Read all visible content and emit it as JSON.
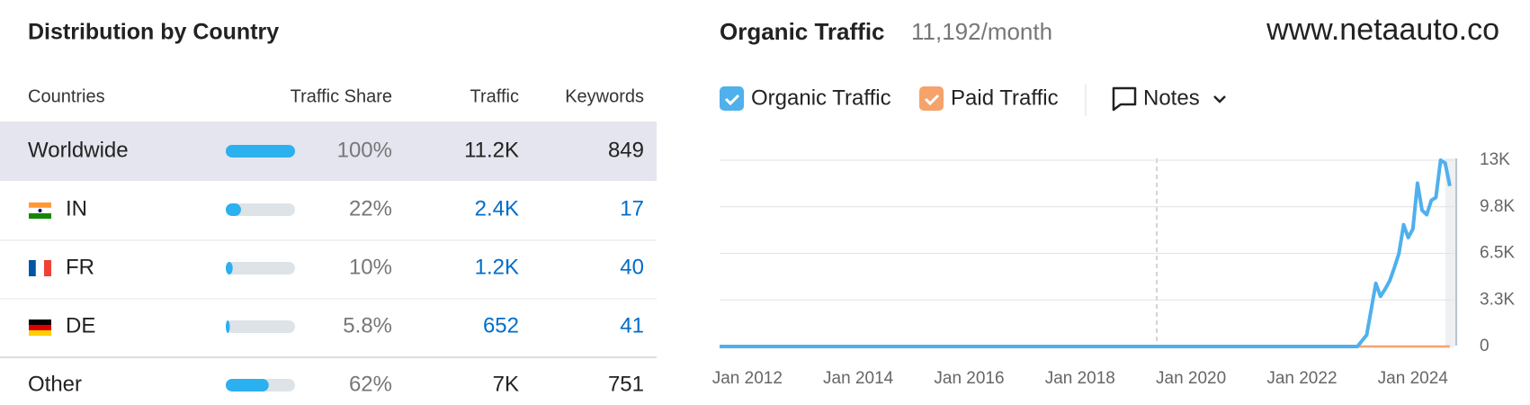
{
  "table": {
    "title": "Distribution by Country",
    "columns": [
      "Countries",
      "Traffic Share",
      "Traffic",
      "Keywords"
    ],
    "rows": [
      {
        "country": "Worldwide",
        "share": 100,
        "share_label": "100%",
        "traffic": "11.2K",
        "keywords": 849
      },
      {
        "country": "IN",
        "share": 22,
        "share_label": "22%",
        "traffic": "2.4K",
        "keywords": 17
      },
      {
        "country": "FR",
        "share": 10,
        "share_label": "10%",
        "traffic": "1.2K",
        "keywords": 40
      },
      {
        "country": "DE",
        "share": 5.8,
        "share_label": "5.8%",
        "traffic": "652",
        "keywords": 41
      },
      {
        "country": "Other",
        "share": 62,
        "share_label": "62%",
        "traffic": "7K",
        "keywords": 751
      }
    ]
  },
  "website": "www.netaauto.co",
  "chart_data": {
    "type": "line",
    "title": "Organic Traffic",
    "subtitle": "11,192/month",
    "notes": "Notes",
    "x": [
      "2011-07",
      "2023-01",
      "2023-03",
      "2023-05",
      "2023-06",
      "2023-07",
      "2023-08",
      "2023-09",
      "2023-10",
      "2023-11",
      "2023-12",
      "2024-01",
      "2024-02",
      "2024-03",
      "2024-04",
      "2024-05",
      "2024-06",
      "2024-07",
      "2024-08",
      "2024-09"
    ],
    "series": [
      {
        "name": "Organic Traffic",
        "color": "#4fb0ec",
        "values": [
          0,
          0,
          800,
          4400,
          3500,
          4000,
          4600,
          5500,
          6500,
          8500,
          7600,
          8200,
          11400,
          9500,
          9200,
          10200,
          10400,
          13000,
          12800,
          11200
        ]
      },
      {
        "name": "Paid Traffic",
        "color": "#f5a36b",
        "values": [
          0,
          0,
          0,
          0,
          0,
          0,
          0,
          0,
          0,
          0,
          0,
          0,
          0,
          0,
          0,
          0,
          0,
          0,
          0,
          0
        ]
      }
    ],
    "xlim": [
      "2011-07",
      "2024-10"
    ],
    "xticks": [
      {
        "value": "2012-01",
        "label": "Jan 2012"
      },
      {
        "value": "2014-01",
        "label": "Jan 2014"
      },
      {
        "value": "2016-01",
        "label": "Jan 2016"
      },
      {
        "value": "2018-01",
        "label": "Jan 2018"
      },
      {
        "value": "2020-01",
        "label": "Jan 2020"
      },
      {
        "value": "2022-01",
        "label": "Jan 2022"
      },
      {
        "value": "2024-01",
        "label": "Jan 2024"
      }
    ],
    "ylim": [
      0,
      13000
    ],
    "yticks": [
      {
        "value": 0,
        "label": "0"
      },
      {
        "value": 3250,
        "label": "3.3K"
      },
      {
        "value": 6500,
        "label": "6.5K"
      },
      {
        "value": 9750,
        "label": "9.8K"
      },
      {
        "value": 13000,
        "label": "13K"
      }
    ],
    "grid": true
  }
}
